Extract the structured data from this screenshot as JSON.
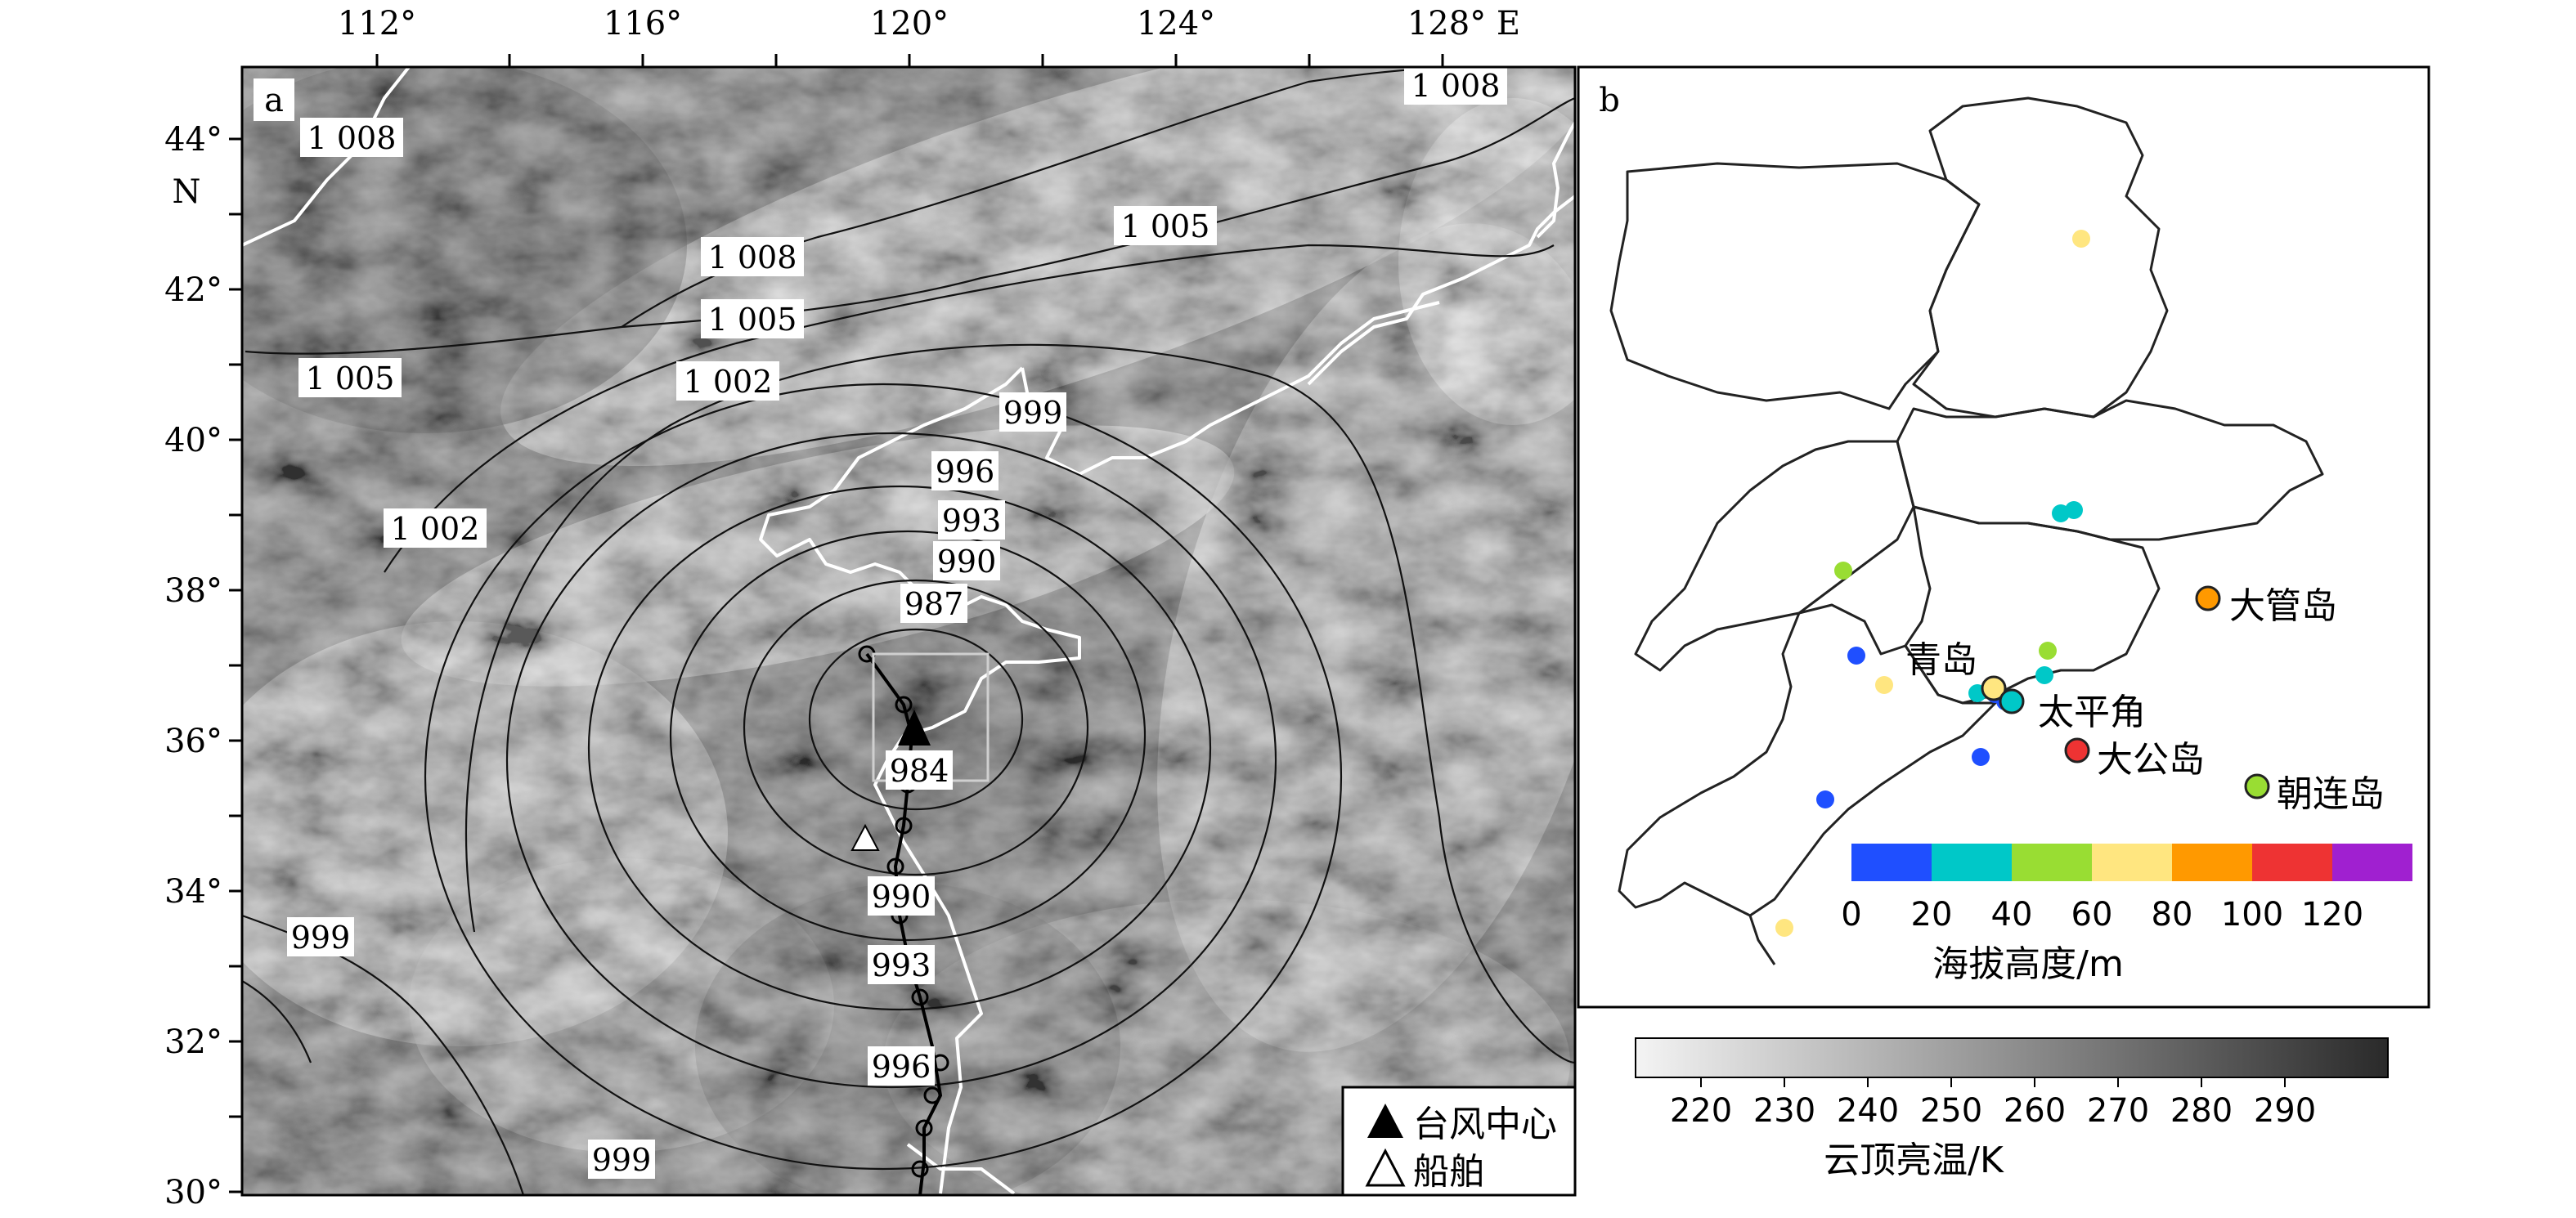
{
  "panel_a": {
    "label": "a",
    "lon_ticks": [
      "112°",
      "116°",
      "120°",
      "124°",
      "128° E"
    ],
    "lat_ticks": [
      "44°",
      "42°",
      "40°",
      "38°",
      "36°",
      "34°",
      "32°",
      "30°"
    ],
    "lat_unit": "N",
    "isobar_labels": [
      "1 008",
      "1 008",
      "1 008",
      "1 005",
      "1 005",
      "1 005",
      "1 002",
      "1 002",
      "999",
      "996",
      "993",
      "990",
      "987",
      "984",
      "990",
      "993",
      "996",
      "999",
      "999"
    ],
    "legend": {
      "typhoon_center": "台风中心",
      "ship": "船舶"
    }
  },
  "panel_b": {
    "label": "b",
    "stations": [
      "大管岛",
      "青岛",
      "太平角",
      "大公岛",
      "朝连岛"
    ],
    "station_colors": [
      "#ff9900",
      "#ffe680",
      "#00c8c8",
      "#ee3333",
      "#99dd33"
    ],
    "colorbar": {
      "colors": [
        "#1f4fff",
        "#00c8c8",
        "#99dd33",
        "#ffe680",
        "#ff9900",
        "#ee3333",
        "#a020d0"
      ],
      "tick_labels": [
        "0",
        "20",
        "40",
        "60",
        "80",
        "100",
        "120"
      ],
      "title": "海拔高度/m"
    }
  },
  "cloud_colorbar": {
    "tick_labels": [
      "220",
      "230",
      "240",
      "250",
      "260",
      "270",
      "280",
      "290"
    ],
    "title": "云顶亮温/K"
  }
}
